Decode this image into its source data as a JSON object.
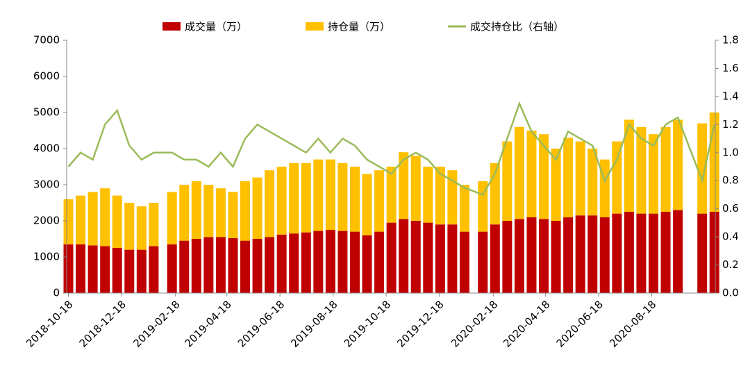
{
  "chart_data": {
    "type": "bar",
    "stacked": true,
    "x": [
      "2018-10-18",
      "2018-11-01",
      "2018-11-15",
      "2018-11-29",
      "2018-12-13",
      "2018-12-27",
      "2019-01-10",
      "2019-01-24",
      "2019-02-14",
      "2019-02-28",
      "2019-03-14",
      "2019-03-28",
      "2019-04-11",
      "2019-04-25",
      "2019-05-09",
      "2019-05-23",
      "2019-06-06",
      "2019-06-20",
      "2019-07-04",
      "2019-07-18",
      "2019-08-01",
      "2019-08-15",
      "2019-08-29",
      "2019-09-12",
      "2019-09-26",
      "2019-10-10",
      "2019-10-24",
      "2019-11-07",
      "2019-11-21",
      "2019-12-05",
      "2019-12-19",
      "2020-01-02",
      "2020-01-16",
      "2020-02-06",
      "2020-02-20",
      "2020-03-05",
      "2020-03-19",
      "2020-04-02",
      "2020-04-16",
      "2020-04-30",
      "2020-05-14",
      "2020-05-28",
      "2020-06-11",
      "2020-06-25",
      "2020-07-09",
      "2020-07-23",
      "2020-08-06",
      "2020-08-20",
      "2020-09-03",
      "2020-09-17",
      "2020-10-15",
      "2020-10-29"
    ],
    "series": [
      {
        "name": "成交量（万）",
        "type": "bar",
        "color": "#c00000",
        "values": [
          1350,
          1350,
          1320,
          1300,
          1250,
          1200,
          1200,
          1300,
          1350,
          1450,
          1500,
          1550,
          1550,
          1520,
          1450,
          1500,
          1550,
          1620,
          1650,
          1680,
          1720,
          1750,
          1720,
          1700,
          1600,
          1700,
          1950,
          2050,
          2000,
          1950,
          1900,
          1900,
          1700,
          1700,
          1900,
          2000,
          2050,
          2100,
          2050,
          2000,
          2100,
          2150,
          2150,
          2100,
          2200,
          2250,
          2200,
          2200,
          2250,
          2300,
          2200,
          2250
        ]
      },
      {
        "name": "持仓量（万）",
        "type": "bar",
        "color": "#ffc000",
        "values": [
          1250,
          1350,
          1480,
          1600,
          1450,
          1300,
          1200,
          1200,
          1450,
          1550,
          1600,
          1450,
          1350,
          1280,
          1650,
          1700,
          1850,
          1880,
          1950,
          1920,
          1980,
          1950,
          1880,
          1800,
          1700,
          1700,
          1550,
          1850,
          1800,
          1550,
          1600,
          1500,
          1300,
          1400,
          1700,
          2200,
          2550,
          2400,
          2350,
          2000,
          2200,
          2050,
          1850,
          1600,
          2000,
          2550,
          2400,
          2200,
          2350,
          2500,
          2500,
          2750
        ]
      },
      {
        "name": "成交持仓比（右轴）",
        "type": "line",
        "axis": "y2",
        "color": "#9bbb59",
        "values": [
          0.9,
          1.0,
          0.95,
          1.2,
          1.3,
          1.05,
          0.95,
          1.0,
          1.0,
          0.95,
          0.95,
          0.9,
          1.0,
          0.9,
          1.1,
          1.2,
          1.15,
          1.1,
          1.05,
          1.0,
          1.1,
          1.0,
          1.1,
          1.05,
          0.95,
          0.9,
          0.85,
          0.95,
          1.0,
          0.95,
          0.85,
          0.8,
          0.75,
          0.7,
          0.85,
          1.1,
          1.35,
          1.15,
          1.05,
          0.95,
          1.15,
          1.1,
          1.05,
          0.8,
          0.95,
          1.2,
          1.1,
          1.05,
          1.2,
          1.25,
          0.8,
          1.2
        ]
      }
    ],
    "xlim": [
      "2018-10-16",
      "2020-10-30"
    ],
    "xticks": [
      "2018-10-18",
      "2018-12-18",
      "2019-02-18",
      "2019-04-18",
      "2019-06-18",
      "2019-08-18",
      "2019-10-18",
      "2019-12-18",
      "2020-02-18",
      "2020-04-18",
      "2020-06-18",
      "2020-08-18"
    ],
    "ylim": [
      0,
      7000
    ],
    "yticks": [
      0,
      1000,
      2000,
      3000,
      4000,
      5000,
      6000,
      7000
    ],
    "y2lim": [
      0,
      1.8
    ],
    "y2ticks": [
      {
        "value": 0,
        "label": "0.0"
      },
      {
        "value": 0.2,
        "label": "0.2"
      },
      {
        "value": 0.4,
        "label": "0.4"
      },
      {
        "value": 0.6,
        "label": "0.6"
      },
      {
        "value": 0.8,
        "label": "0.8"
      },
      {
        "value": 1,
        "label": "1.0"
      },
      {
        "value": 1.2,
        "label": "1.2"
      },
      {
        "value": 1.4,
        "label": "1.4"
      },
      {
        "value": 1.6,
        "label": "1.6"
      },
      {
        "value": 1.8,
        "label": "1.8"
      }
    ],
    "legend": "top"
  }
}
